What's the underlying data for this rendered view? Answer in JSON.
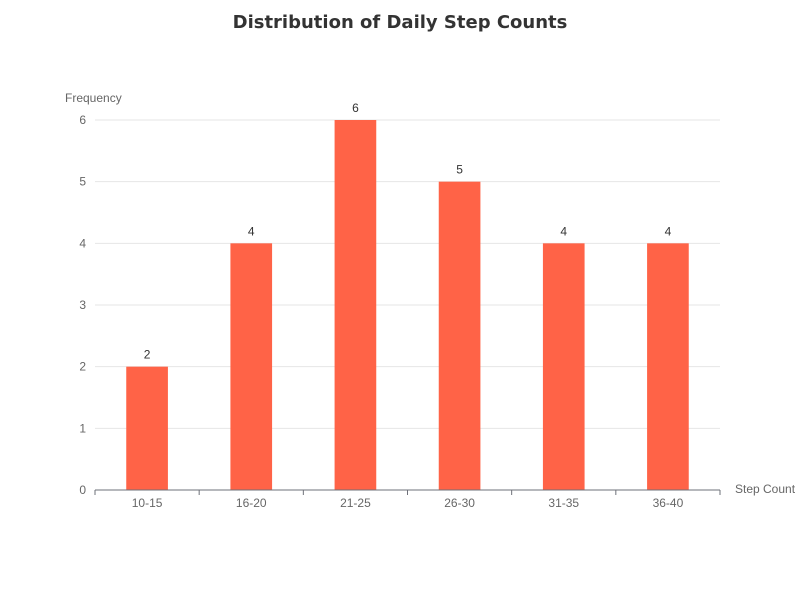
{
  "chart_data": {
    "type": "bar",
    "title": "Distribution of Daily Step Counts",
    "xlabel": "Step Count",
    "ylabel": "Frequency",
    "categories": [
      "10-15",
      "16-20",
      "21-25",
      "26-30",
      "31-35",
      "36-40"
    ],
    "values": [
      2,
      4,
      6,
      5,
      4,
      4
    ],
    "ylim": [
      0,
      6
    ],
    "yticks": [
      0,
      1,
      2,
      3,
      4,
      5,
      6
    ],
    "grid": true,
    "bar_color": "#ff6347",
    "data_labels": true
  }
}
